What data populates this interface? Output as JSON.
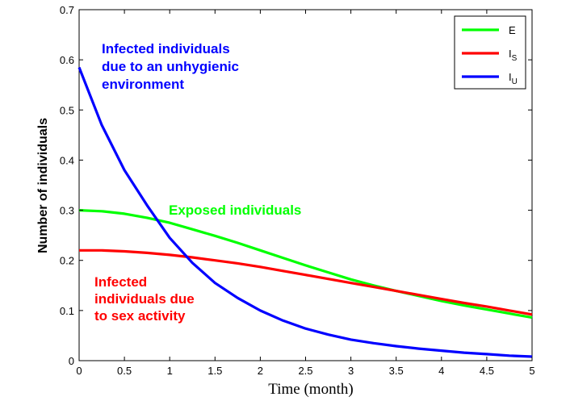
{
  "chart_data": {
    "type": "line",
    "xlabel": "Time (month)",
    "ylabel": "Number of individuals",
    "xlim": [
      0,
      5
    ],
    "ylim": [
      0,
      0.7
    ],
    "x_ticks": [
      "0",
      "0.5",
      "1",
      "1.5",
      "2",
      "2.5",
      "3",
      "3.5",
      "4",
      "4.5",
      "5"
    ],
    "y_ticks": [
      "0",
      "0.1",
      "0.2",
      "0.3",
      "0.4",
      "0.5",
      "0.6",
      "0.7"
    ],
    "grid": false,
    "legend_position": "top-right",
    "legend": [
      {
        "label": "E",
        "sub": "",
        "color": "#00ff00"
      },
      {
        "label": "I",
        "sub": "S",
        "color": "#ff0000"
      },
      {
        "label": "I",
        "sub": "U",
        "color": "#0000ff"
      }
    ],
    "x": [
      0,
      0.25,
      0.5,
      0.75,
      1,
      1.25,
      1.5,
      1.75,
      2,
      2.25,
      2.5,
      2.75,
      3,
      3.25,
      3.5,
      3.75,
      4,
      4.25,
      4.5,
      4.75,
      5
    ],
    "series": [
      {
        "name": "E",
        "color": "#00ff00",
        "values": [
          0.3,
          0.298,
          0.293,
          0.285,
          0.275,
          0.262,
          0.249,
          0.235,
          0.22,
          0.205,
          0.19,
          0.176,
          0.162,
          0.15,
          0.139,
          0.129,
          0.119,
          0.11,
          0.102,
          0.094,
          0.086
        ]
      },
      {
        "name": "I_S",
        "color": "#ff0000",
        "values": [
          0.22,
          0.22,
          0.218,
          0.215,
          0.211,
          0.206,
          0.2,
          0.194,
          0.187,
          0.179,
          0.171,
          0.163,
          0.155,
          0.147,
          0.139,
          0.131,
          0.123,
          0.115,
          0.108,
          0.1,
          0.092
        ]
      },
      {
        "name": "I_U",
        "color": "#0000ff",
        "values": [
          0.585,
          0.47,
          0.38,
          0.31,
          0.245,
          0.195,
          0.155,
          0.125,
          0.1,
          0.08,
          0.064,
          0.052,
          0.042,
          0.035,
          0.029,
          0.024,
          0.02,
          0.016,
          0.013,
          0.01,
          0.008
        ]
      }
    ],
    "annotations": [
      {
        "lines": [
          "Infected individuals",
          "due to an unhygienic",
          "environment"
        ],
        "color": "#0000ff"
      },
      {
        "lines": [
          "Exposed individuals"
        ],
        "color": "#00ff00"
      },
      {
        "lines": [
          "Infected",
          "individuals due",
          "to sex activity"
        ],
        "color": "#ff0000"
      }
    ]
  }
}
